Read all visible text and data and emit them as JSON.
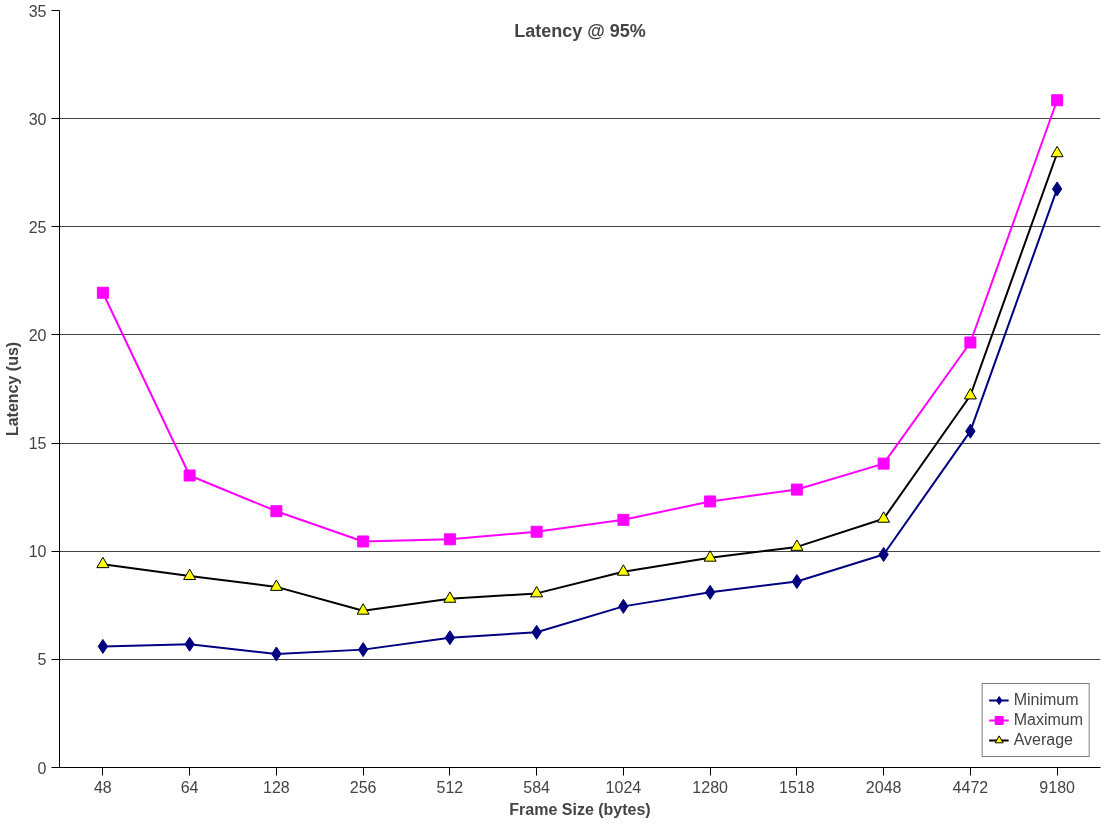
{
  "chart_data": {
    "type": "line",
    "title": "Latency @ 95%",
    "xlabel": "Frame Size (bytes)",
    "ylabel": "Latency (us)",
    "categories": [
      "48",
      "64",
      "128",
      "256",
      "512",
      "584",
      "1024",
      "1280",
      "1518",
      "2048",
      "4472",
      "9180"
    ],
    "series": [
      {
        "name": "Minimum",
        "color": "#000080",
        "marker": "diamond",
        "values": [
          5.6,
          5.7,
          5.25,
          5.45,
          6.0,
          6.25,
          7.45,
          8.1,
          8.6,
          9.85,
          15.55,
          26.75
        ]
      },
      {
        "name": "Maximum",
        "color": "#ff00ff",
        "marker": "square",
        "values": [
          21.95,
          13.5,
          11.85,
          10.45,
          10.55,
          10.9,
          11.45,
          12.3,
          12.85,
          14.05,
          19.65,
          30.85
        ]
      },
      {
        "name": "Average",
        "color": "#000000",
        "marker": "triangle",
        "values": [
          9.4,
          8.85,
          8.35,
          7.25,
          7.8,
          8.05,
          9.05,
          9.7,
          10.2,
          11.5,
          17.2,
          28.4
        ]
      }
    ],
    "ylim": [
      0,
      35
    ],
    "yticks": [
      0,
      5,
      10,
      15,
      20,
      25,
      30,
      35
    ],
    "grid": "y",
    "legend": "bottom right"
  }
}
